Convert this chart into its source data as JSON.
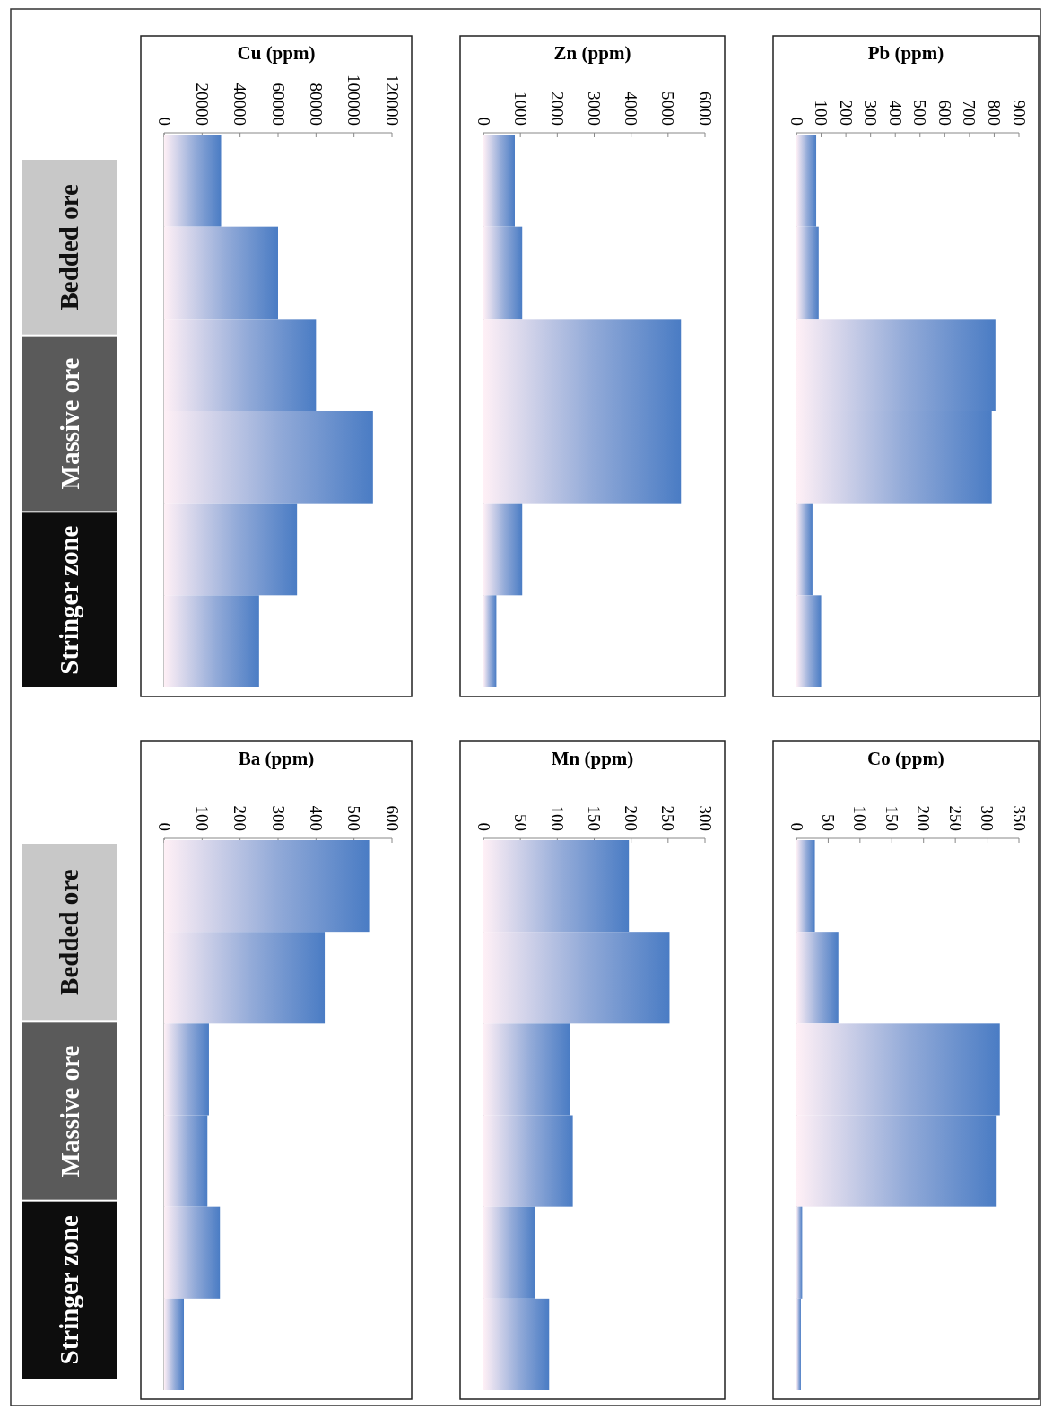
{
  "chart_data": [
    {
      "type": "other",
      "categories": [
        "Bedded ore",
        "Massive ore",
        "Stringer zone"
      ],
      "colors": [
        "#c8c8c8",
        "#5a5a5a",
        "#0d0d0d"
      ]
    },
    {
      "type": "bar",
      "orientation": "horizontal",
      "title": "Cu (ppm)",
      "categories": [
        null,
        null,
        null,
        null,
        null,
        null
      ],
      "values": [
        30000,
        60000,
        80000,
        110000,
        70000,
        50000
      ],
      "color": "#4a7cc4",
      "xlim": [
        0,
        120000
      ],
      "xticks": [
        0,
        20000,
        40000,
        60000,
        80000,
        100000,
        120000
      ]
    },
    {
      "type": "bar",
      "orientation": "horizontal",
      "title": "Zn (ppm)",
      "categories": [
        null,
        null,
        null,
        null,
        null,
        null
      ],
      "values": [
        850,
        1050,
        5350,
        5350,
        1050,
        350
      ],
      "color": "#4a7cc4",
      "xlim": [
        0,
        6000
      ],
      "xticks": [
        0,
        1000,
        2000,
        3000,
        4000,
        5000,
        6000
      ]
    },
    {
      "type": "bar",
      "orientation": "horizontal",
      "title": "Pb (ppm)",
      "categories": [
        null,
        null,
        null,
        null,
        null,
        null
      ],
      "values": [
        80,
        90,
        805,
        790,
        65,
        100
      ],
      "color": "#4a7cc4",
      "xlim": [
        0,
        900
      ],
      "xticks": [
        0,
        100,
        200,
        300,
        400,
        500,
        600,
        700,
        800,
        900
      ]
    },
    {
      "type": "other",
      "categories": [
        "Bedded ore",
        "Massive ore",
        "Stringer zone"
      ],
      "colors": [
        "#c8c8c8",
        "#5a5a5a",
        "#0d0d0d"
      ]
    },
    {
      "type": "bar",
      "orientation": "horizontal",
      "title": "Ba (ppm)",
      "categories": [
        null,
        null,
        null,
        null,
        null,
        null
      ],
      "values": [
        540,
        423,
        118,
        114,
        147,
        52
      ],
      "color": "#4a7cc4",
      "xlim": [
        0,
        600
      ],
      "xticks": [
        0,
        100,
        200,
        300,
        400,
        500,
        600
      ]
    },
    {
      "type": "bar",
      "orientation": "horizontal",
      "title": "Mn (ppm)",
      "categories": [
        null,
        null,
        null,
        null,
        null,
        null
      ],
      "values": [
        197,
        252,
        117,
        121,
        70,
        89
      ],
      "color": "#4a7cc4",
      "xlim": [
        0,
        300
      ],
      "xticks": [
        0,
        50,
        100,
        150,
        200,
        250,
        300
      ]
    },
    {
      "type": "bar",
      "orientation": "horizontal",
      "title": "Co (ppm)",
      "categories": [
        null,
        null,
        null,
        null,
        null,
        null
      ],
      "values": [
        29,
        66,
        320,
        315,
        9,
        7
      ],
      "color": "#4a7cc4",
      "xlim": [
        0,
        350
      ],
      "xticks": [
        0,
        50,
        100,
        150,
        200,
        250,
        300,
        350
      ]
    }
  ]
}
